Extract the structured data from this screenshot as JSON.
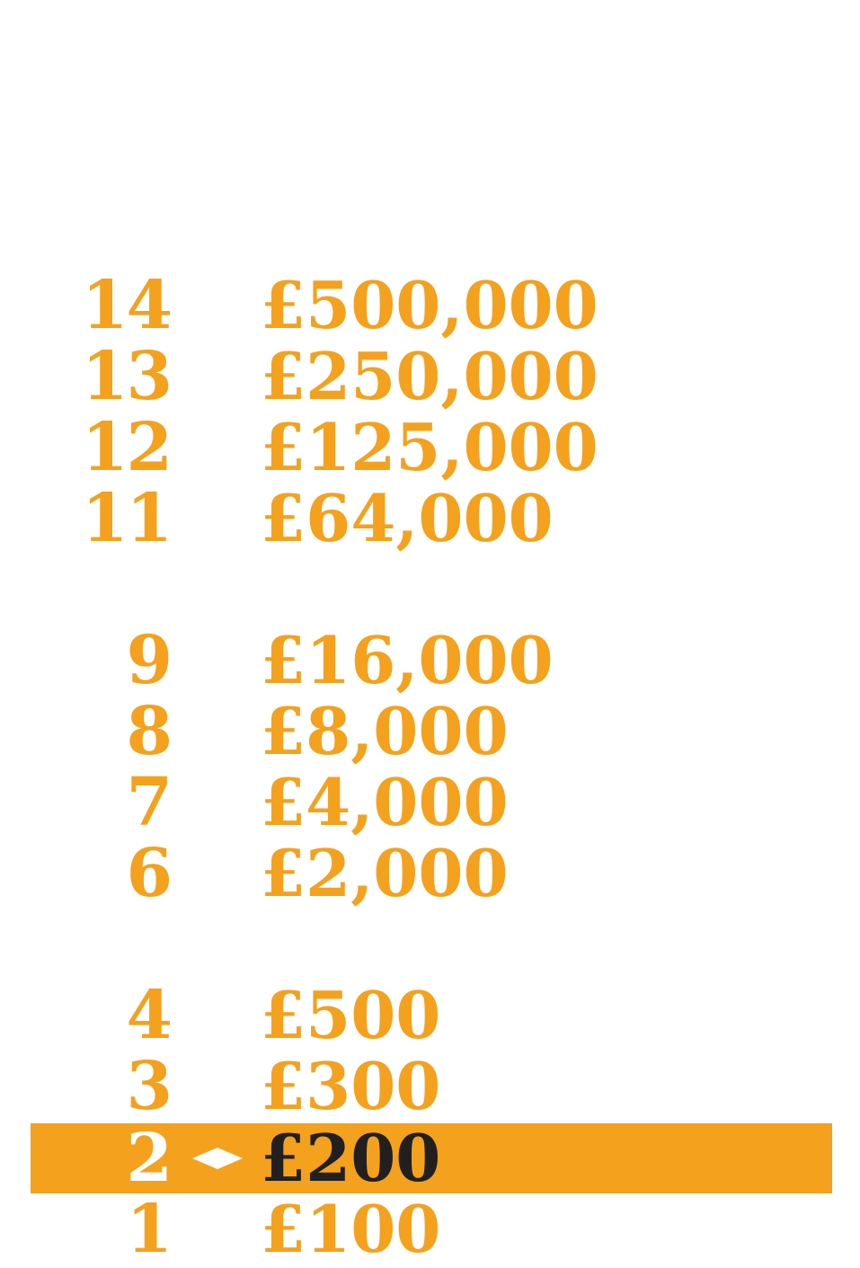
{
  "colors": {
    "accent": "#f4a11d",
    "highlight_text": "#221f1f",
    "highlight_number": "#ffffff",
    "background": "#ffffff"
  },
  "ladder": {
    "current_level": "2",
    "rungs": [
      {
        "level": "14",
        "amount": "£500,000"
      },
      {
        "level": "13",
        "amount": "£250,000"
      },
      {
        "level": "12",
        "amount": "£125,000"
      },
      {
        "level": "11",
        "amount": "£64,000"
      },
      {
        "level": "9",
        "amount": "£16,000"
      },
      {
        "level": "8",
        "amount": "£8,000"
      },
      {
        "level": "7",
        "amount": "£4,000"
      },
      {
        "level": "6",
        "amount": "£2,000"
      },
      {
        "level": "4",
        "amount": "£500"
      },
      {
        "level": "3",
        "amount": "£300"
      },
      {
        "level": "2",
        "amount": "£200",
        "current": true,
        "marker_icon": "diamond-icon"
      },
      {
        "level": "1",
        "amount": "£100"
      }
    ]
  }
}
